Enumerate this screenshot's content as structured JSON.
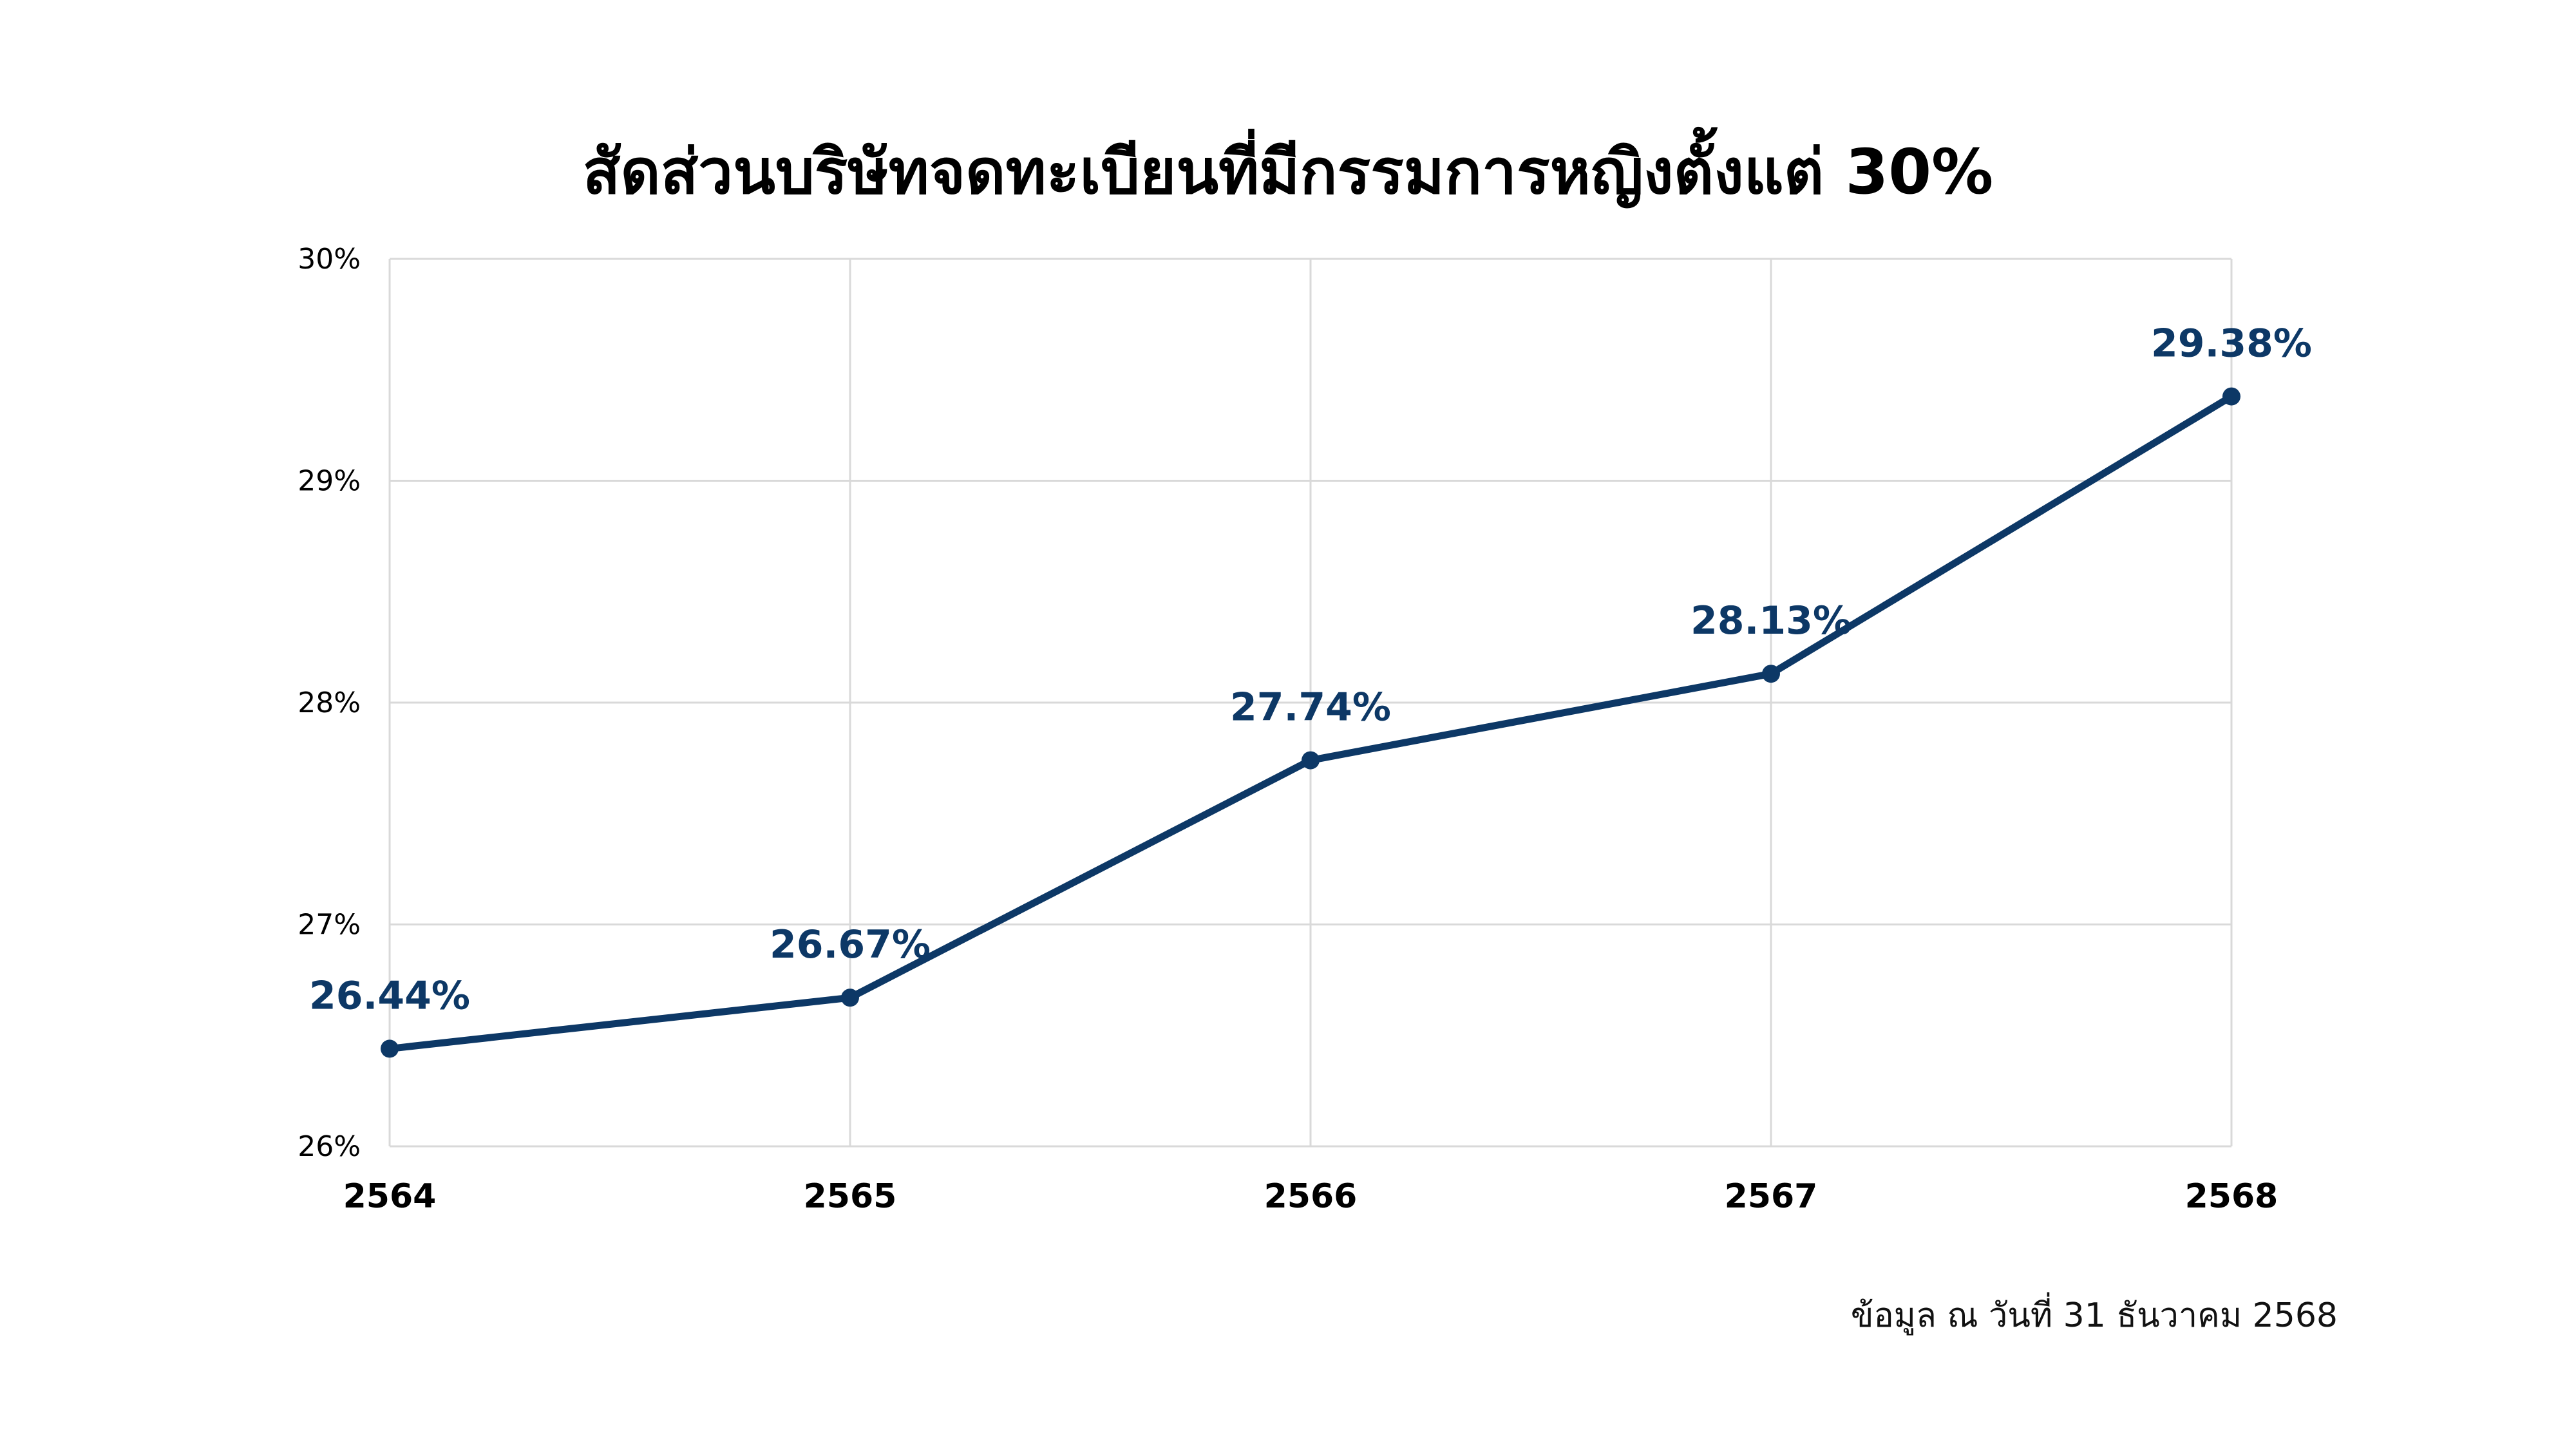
{
  "chart_data": {
    "type": "line",
    "title": "สัดส่วนบริษัทจดทะเบียนที่มีกรรมการหญิงตั้งแต่ 30%",
    "categories": [
      "2564",
      "2565",
      "2566",
      "2567",
      "2568"
    ],
    "series": [
      {
        "values": [
          26.44,
          26.67,
          27.74,
          28.13,
          29.38
        ],
        "data_labels": [
          "26.44%",
          "26.67%",
          "27.74%",
          "28.13%",
          "29.38%"
        ],
        "color": "#0d3866"
      }
    ],
    "ylim": [
      26,
      30
    ],
    "yticks": [
      26,
      27,
      28,
      29,
      30
    ],
    "ytick_labels": [
      "26%",
      "27%",
      "28%",
      "29%",
      "30%"
    ],
    "grid": true,
    "legend": "none",
    "source_note": "ข้อมูล ณ วันที่ 31 ธันวาคม 2568",
    "colors": {
      "line": "#0d3866",
      "grid": "#d9d9d9",
      "text": "#000000"
    }
  }
}
